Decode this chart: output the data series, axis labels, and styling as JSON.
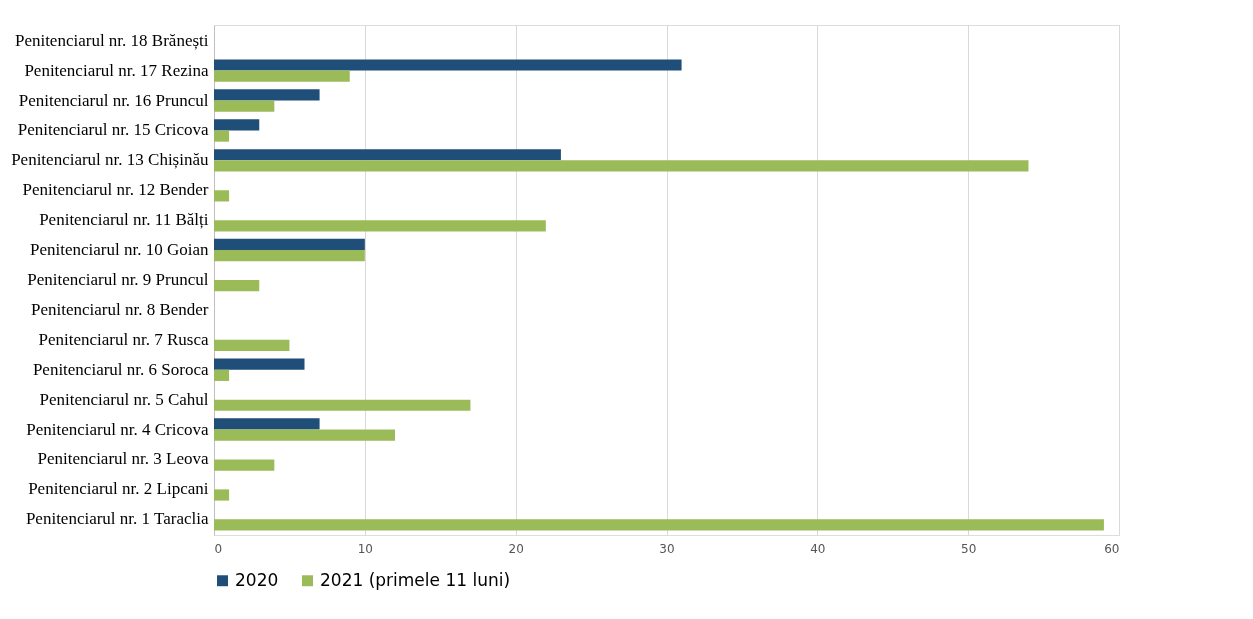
{
  "chart_data": {
    "type": "bar",
    "orientation": "horizontal",
    "categories": [
      "Penitenciarul nr. 18 Brănești",
      "Penitenciarul nr. 17 Rezina",
      "Penitenciarul nr. 16 Pruncul",
      "Penitenciarul nr. 15 Cricova",
      "Penitenciarul nr. 13 Chișinău",
      "Penitenciarul nr. 12 Bender",
      "Penitenciarul nr. 11 Bălți",
      "Penitenciarul nr. 10 Goian",
      "Penitenciarul nr. 9 Pruncul",
      "Penitenciarul nr. 8 Bender",
      "Penitenciarul nr. 7 Rusca",
      "Penitenciarul nr. 6 Soroca",
      "Penitenciarul nr. 5 Cahul",
      "Penitenciarul nr. 4 Cricova",
      "Penitenciarul nr. 3 Leova",
      "Penitenciarul nr. 2 Lipcani",
      "Penitenciarul nr. 1 Taraclia"
    ],
    "series": [
      {
        "name": "2020",
        "color": "#1f4e79",
        "values": [
          0,
          31,
          7,
          3,
          23,
          0,
          0,
          10,
          0,
          0,
          0,
          6,
          0,
          7,
          0,
          0,
          0
        ]
      },
      {
        "name": "2021 (primele 11 luni)",
        "color": "#9bbb59",
        "values": [
          0,
          9,
          4,
          1,
          54,
          1,
          22,
          10,
          3,
          0,
          5,
          1,
          17,
          12,
          4,
          1,
          59
        ]
      }
    ],
    "xlim": [
      0,
      60
    ],
    "xticks": [
      0,
      10,
      20,
      30,
      40,
      50,
      60
    ],
    "grid": "x",
    "legend": "bottom"
  }
}
